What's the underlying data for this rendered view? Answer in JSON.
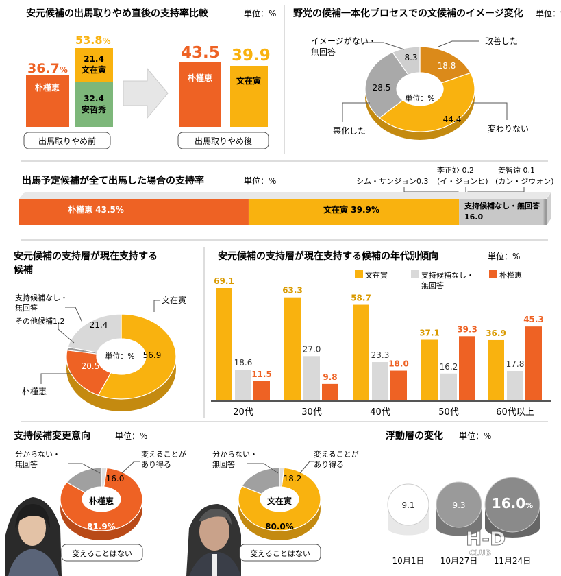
{
  "colors": {
    "orange": "#EE6224",
    "yellow": "#F9B20F",
    "green": "#7DB77A",
    "grey": "#BFBFBF",
    "lightgrey": "#D9D9D9",
    "darkorange": "#DB8A1A",
    "line": "#555555"
  },
  "p1": {
    "title": "安元候補の出馬取りやめ直後の支持率比較",
    "unit": "単位：%",
    "before_label": "出馬取りやめ前",
    "after_label": "出馬取りやめ後",
    "park_pct": "36.7",
    "park_sym": "%",
    "park_name": "朴槿恵",
    "stack_total": "53.8",
    "stack_sym": "%",
    "moon_val": "21.4",
    "moon_name": "文在寅",
    "ahn_val": "32.4",
    "ahn_name": "安哲秀",
    "after_park": "43.5",
    "after_park_name": "朴槿恵",
    "after_moon": "39.9",
    "after_moon_name": "文在寅",
    "chart_data": {
      "type": "bar",
      "categories": [
        "出馬取りやめ前",
        "出馬取りやめ後"
      ],
      "series": [
        {
          "name": "朴槿恵",
          "values": [
            36.7,
            43.5
          ]
        },
        {
          "name": "文在寅",
          "values": [
            21.4,
            39.9
          ]
        },
        {
          "name": "安哲秀",
          "values": [
            32.4,
            null
          ]
        }
      ]
    }
  },
  "p2": {
    "title": "野党の候補一本化プロセスでの文候補のイメージ変化",
    "unit": "単位：%",
    "labels": [
      "改善した",
      "変わりない",
      "悪化した",
      "イメージがない・\n無回答"
    ],
    "chart_data": {
      "type": "pie",
      "labels": [
        "改善した",
        "変わりない",
        "悪化した",
        "イメージがない・無回答"
      ],
      "values": [
        18.8,
        44.4,
        28.5,
        8.3
      ]
    }
  },
  "p3": {
    "title": "出馬予定候補が全て出馬した場合の支持率",
    "unit": "単位：%",
    "seg1": "朴槿恵 43.5%",
    "seg2": "文在寅 39.9%",
    "seg3a": "支持候補なし・無回答",
    "seg3b": "16.0",
    "ann1": "シム・サンジョン0.3",
    "ann2a": "李正姫 0.2",
    "ann2b": "(イ・ジョンヒ)",
    "ann3a": "姜智遠 0.1",
    "ann3b": "(カン・ジウォン)",
    "chart_data": {
      "type": "bar",
      "categories": [
        "朴槿恵",
        "文在寅",
        "支持候補なし・無回答",
        "シム・サンジョン",
        "李正姫",
        "姜智遠"
      ],
      "values": [
        43.5,
        39.9,
        16.0,
        0.3,
        0.2,
        0.1
      ]
    }
  },
  "p4": {
    "title1": "安元候補の支持層が現在支持する",
    "title2": "候補",
    "l_moon": "文在寅",
    "l_none1": "支持候補なし・",
    "l_none2": "無回答",
    "l_other": "その他候補1.2",
    "l_park": "朴槿恵",
    "chart_data": {
      "type": "pie",
      "labels": [
        "文在寅",
        "朴槿恵",
        "その他候補",
        "支持候補なし・無回答"
      ],
      "values": [
        56.9,
        20.5,
        1.2,
        21.4
      ]
    }
  },
  "p5": {
    "title": "安元候補の支持層が現在支持する候補の年代別傾向",
    "unit": "単位：%",
    "legend": [
      "文在寅",
      "支持候補なし・\n無回答",
      "朴槿恵"
    ],
    "chart_data": {
      "type": "bar",
      "categories": [
        "20代",
        "30代",
        "40代",
        "50代",
        "60代以上"
      ],
      "series": [
        {
          "name": "文在寅",
          "values": [
            69.1,
            63.3,
            58.7,
            37.1,
            36.9
          ]
        },
        {
          "name": "支持候補なし・無回答",
          "values": [
            18.6,
            27.0,
            23.3,
            16.2,
            17.8
          ]
        },
        {
          "name": "朴槿恵",
          "values": [
            11.5,
            9.8,
            18.0,
            39.3,
            45.3
          ]
        }
      ]
    }
  },
  "p6": {
    "title": "支持候補変更意向",
    "unit": "単位：%",
    "l_unknown1": "分からない・",
    "l_unknown2": "無回答",
    "l_can1": "変えることが",
    "l_can2": "あり得る",
    "park_name": "朴槿恵",
    "moon_name": "文在寅",
    "nochange": "変えることはない",
    "chart_data": [
      {
        "type": "pie",
        "labels": [
          "変えることはない",
          "変えることがあり得る",
          "分からない・無回答"
        ],
        "values": [
          81.9,
          16.0,
          2.1
        ],
        "title": "朴槿恵"
      },
      {
        "type": "pie",
        "labels": [
          "変えることはない",
          "変えることがあり得る",
          "分からない・無回答"
        ],
        "values": [
          80.0,
          18.2,
          1.8
        ],
        "title": "文在寅"
      }
    ]
  },
  "p7": {
    "title": "浮動層の変化",
    "unit": "単位：%",
    "big_sym": "%",
    "chart_data": {
      "type": "bar",
      "categories": [
        "10月1日",
        "10月27日",
        "11月24日"
      ],
      "values": [
        9.1,
        9.3,
        16.0
      ]
    }
  }
}
